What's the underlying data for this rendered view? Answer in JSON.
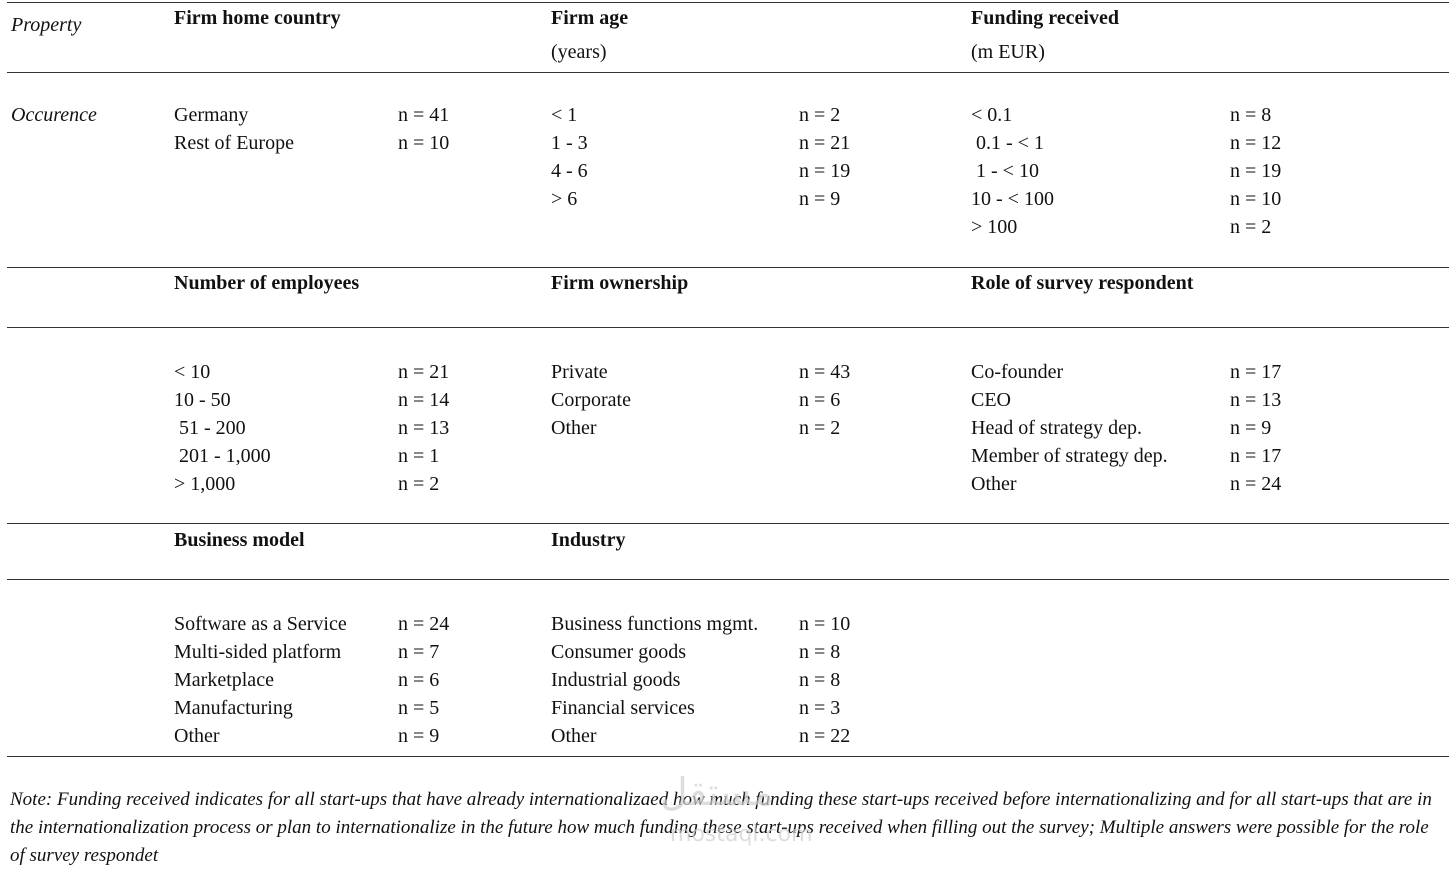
{
  "row_label_property": "Property",
  "row_label_occurence": "Occurence",
  "sections": [
    {
      "columns": [
        {
          "title": "Firm home country",
          "subtitle": "",
          "items": [
            {
              "label": "Germany",
              "n": "n = 41"
            },
            {
              "label": "Rest of Europe",
              "n": "n = 10"
            }
          ]
        },
        {
          "title": "Firm age",
          "subtitle": "(years)",
          "items": [
            {
              "label": "< 1",
              "n": "n = 2"
            },
            {
              "label": "1 - 3",
              "n": "n = 21"
            },
            {
              "label": "4 - 6",
              "n": "n = 19"
            },
            {
              "label": "> 6",
              "n": "n = 9"
            }
          ]
        },
        {
          "title": "Funding received",
          "subtitle": "(m EUR)",
          "items": [
            {
              "label": "< 0.1",
              "n": "n = 8"
            },
            {
              "label": " 0.1 - < 1",
              "n": "n = 12"
            },
            {
              "label": " 1 - < 10",
              "n": "n = 19"
            },
            {
              "label": "10 - < 100",
              "n": "n = 10"
            },
            {
              "label": "> 100",
              "n": "n = 2"
            }
          ]
        }
      ]
    },
    {
      "columns": [
        {
          "title": "Number of employees",
          "subtitle": "",
          "items": [
            {
              "label": "< 10",
              "n": "n = 21"
            },
            {
              "label": "10 - 50",
              "n": "n = 14"
            },
            {
              "label": " 51 - 200",
              "n": "n = 13"
            },
            {
              "label": " 201 - 1,000",
              "n": "n = 1"
            },
            {
              "label": "> 1,000",
              "n": "n = 2"
            }
          ]
        },
        {
          "title": "Firm ownership",
          "subtitle": "",
          "items": [
            {
              "label": "Private",
              "n": "n = 43"
            },
            {
              "label": "Corporate",
              "n": "n = 6"
            },
            {
              "label": "Other",
              "n": "n = 2"
            }
          ]
        },
        {
          "title": "Role of survey respondent",
          "subtitle": "",
          "items": [
            {
              "label": "Co-founder",
              "n": "n = 17"
            },
            {
              "label": "CEO",
              "n": "n = 13"
            },
            {
              "label": "Head of strategy dep.",
              "n": "n = 9"
            },
            {
              "label": "Member of strategy dep.",
              "n": "n = 17"
            },
            {
              "label": "Other",
              "n": "n = 24"
            }
          ]
        }
      ]
    },
    {
      "columns": [
        {
          "title": "Business model",
          "subtitle": "",
          "items": [
            {
              "label": "Software as a Service",
              "n": "n = 24"
            },
            {
              "label": "Multi-sided platform",
              "n": "n = 7"
            },
            {
              "label": "Marketplace",
              "n": "n = 6"
            },
            {
              "label": "Manufacturing",
              "n": "n = 5"
            },
            {
              "label": "Other",
              "n": "n = 9"
            }
          ]
        },
        {
          "title": "Industry",
          "subtitle": "",
          "items": [
            {
              "label": "Business functions mgmt.",
              "n": "n = 10"
            },
            {
              "label": "Consumer goods",
              "n": "n = 8"
            },
            {
              "label": "Industrial goods",
              "n": "n = 8"
            },
            {
              "label": "Financial services",
              "n": "n = 3"
            },
            {
              "label": "Other",
              "n": "n = 22"
            }
          ]
        }
      ]
    }
  ],
  "note": "Note: Funding received indicates for all start-ups that have already internationalizaed how much funding these start-ups received before internationalizing and for all start-ups that are in the internationalization process or plan to internationalize in the future how much funding these start-ups received when filling out the survey; Multiple answers were possible for the role of survey respondet",
  "watermark": {
    "arabic": "مستقل",
    "latin": "mostaql.com"
  }
}
